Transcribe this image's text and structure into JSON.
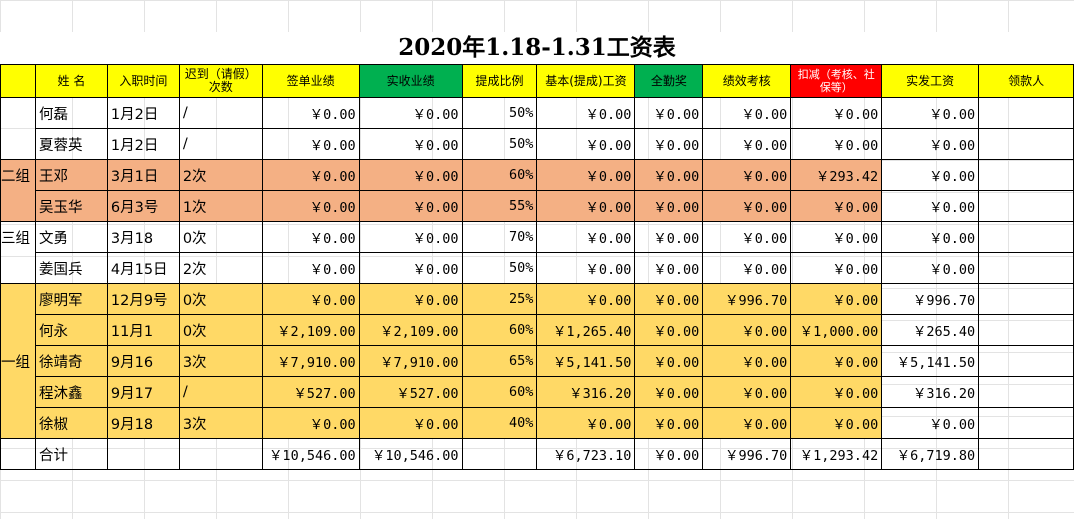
{
  "title": "2020年1.18-1.31工资表",
  "colors": {
    "header_yellow": "#ffff00",
    "header_green": "#00b050",
    "header_red": "#ff0000",
    "orange_row": "#f4b084",
    "gold_row": "#ffd966",
    "grid": "#e3e3e3"
  },
  "headers": [
    "",
    "姓  名",
    "入职时间",
    "迟到（请假）次数",
    "签单业绩",
    "实收业绩",
    "提成比例",
    "基本(提成)工资",
    "全勤奖",
    "绩效考核",
    "扣减（考核、社保等）",
    "实发工资",
    "领款人"
  ],
  "rows": [
    {
      "group": "",
      "name": "何磊",
      "date": "1月2日",
      "late": "/",
      "sign": "￥0.00",
      "actual": "￥0.00",
      "rate": "50%",
      "base": "￥0.00",
      "attend": "￥0.00",
      "perf": "￥0.00",
      "deduct": "￥0.00",
      "net": "￥0.00",
      "payee": ""
    },
    {
      "group": "",
      "name": "夏蓉英",
      "date": "1月2日",
      "late": "/",
      "sign": "￥0.00",
      "actual": "￥0.00",
      "rate": "50%",
      "base": "￥0.00",
      "attend": "￥0.00",
      "perf": "￥0.00",
      "deduct": "￥0.00",
      "net": "￥0.00",
      "payee": ""
    },
    {
      "group": "二组",
      "name": "王邓",
      "date": "3月1日",
      "late": "2次",
      "sign": "￥0.00",
      "actual": "￥0.00",
      "rate": "60%",
      "base": "￥0.00",
      "attend": "￥0.00",
      "perf": "￥0.00",
      "deduct": "￥293.42",
      "net": "￥0.00",
      "payee": ""
    },
    {
      "group": "",
      "name": "吴玉华",
      "date": "6月3号",
      "late": "1次",
      "sign": "￥0.00",
      "actual": "￥0.00",
      "rate": "55%",
      "base": "￥0.00",
      "attend": "￥0.00",
      "perf": "￥0.00",
      "deduct": "￥0.00",
      "net": "￥0.00",
      "payee": ""
    },
    {
      "group": "三组",
      "name": "文勇",
      "date": "3月18",
      "late": "0次",
      "sign": "￥0.00",
      "actual": "￥0.00",
      "rate": "70%",
      "base": "￥0.00",
      "attend": "￥0.00",
      "perf": "￥0.00",
      "deduct": "￥0.00",
      "net": "￥0.00",
      "payee": ""
    },
    {
      "group": "",
      "name": "姜国兵",
      "date": "4月15日",
      "late": "2次",
      "sign": "￥0.00",
      "actual": "￥0.00",
      "rate": "50%",
      "base": "￥0.00",
      "attend": "￥0.00",
      "perf": "￥0.00",
      "deduct": "￥0.00",
      "net": "￥0.00",
      "payee": ""
    },
    {
      "group": "",
      "name": "廖明军",
      "date": "12月9号",
      "late": "0次",
      "sign": "￥0.00",
      "actual": "￥0.00",
      "rate": "25%",
      "base": "￥0.00",
      "attend": "￥0.00",
      "perf": "￥996.70",
      "deduct": "￥0.00",
      "net": "￥996.70",
      "payee": ""
    },
    {
      "group": "",
      "name": "何永",
      "date": "11月1",
      "late": "0次",
      "sign": "￥2,109.00",
      "actual": "￥2,109.00",
      "rate": "60%",
      "base": "￥1,265.40",
      "attend": "￥0.00",
      "perf": "￥0.00",
      "deduct": "￥1,000.00",
      "net": "￥265.40",
      "payee": ""
    },
    {
      "group": "一组",
      "name": "徐靖奇",
      "date": "9月16",
      "late": "3次",
      "sign": "￥7,910.00",
      "actual": "￥7,910.00",
      "rate": "65%",
      "base": "￥5,141.50",
      "attend": "￥0.00",
      "perf": "￥0.00",
      "deduct": "￥0.00",
      "net": "￥5,141.50",
      "payee": ""
    },
    {
      "group": "",
      "name": "程沐鑫",
      "date": "9月17",
      "late": "/",
      "sign": "￥527.00",
      "actual": "￥527.00",
      "rate": "60%",
      "base": "￥316.20",
      "attend": "￥0.00",
      "perf": "￥0.00",
      "deduct": "￥0.00",
      "net": "￥316.20",
      "payee": ""
    },
    {
      "group": "",
      "name": "徐椒",
      "date": "9月18",
      "late": "3次",
      "sign": "￥0.00",
      "actual": "￥0.00",
      "rate": "40%",
      "base": "￥0.00",
      "attend": "￥0.00",
      "perf": "￥0.00",
      "deduct": "￥0.00",
      "net": "￥0.00",
      "payee": ""
    }
  ],
  "total": {
    "label": "合计",
    "sign": "￥10,546.00",
    "actual": "￥10,546.00",
    "base": "￥6,723.10",
    "attend": "￥0.00",
    "perf": "￥996.70",
    "deduct": "￥1,293.42",
    "net": "￥6,719.80"
  }
}
